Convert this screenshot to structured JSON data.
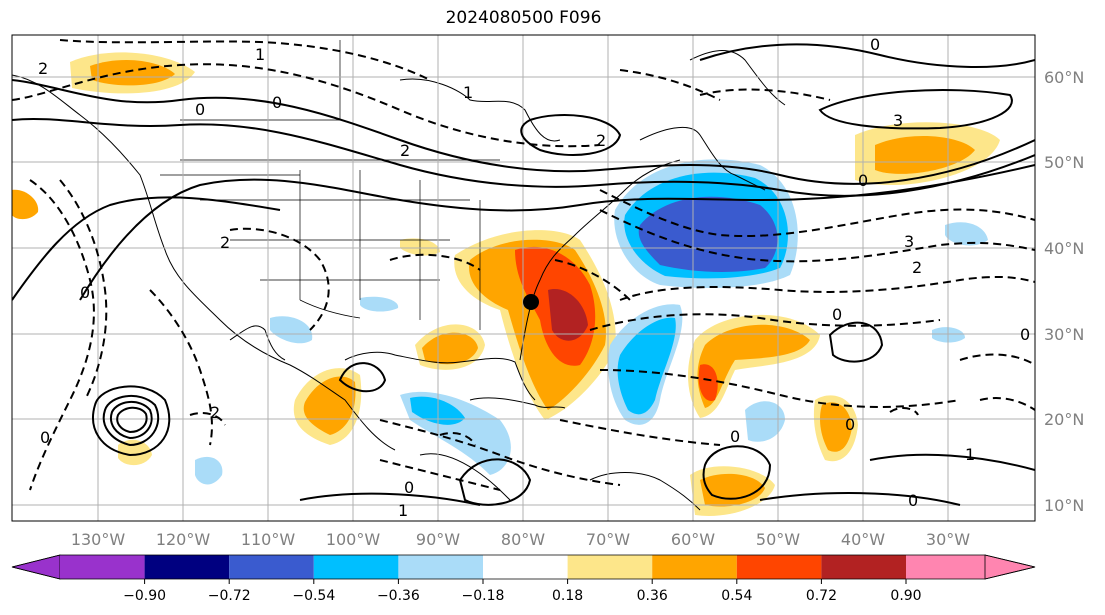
{
  "title": "2024080500 F096",
  "lat_labels": [
    "60°N",
    "50°N",
    "40°N",
    "30°N",
    "20°N",
    "10°N"
  ],
  "lon_labels": [
    "130°W",
    "120°W",
    "110°W",
    "100°W",
    "90°W",
    "80°W",
    "70°W",
    "60°W",
    "50°W",
    "40°W",
    "30°W"
  ],
  "colorbar": {
    "ticks": [
      "−0.90",
      "−0.72",
      "−0.54",
      "−0.36",
      "−0.18",
      "0.18",
      "0.36",
      "0.54",
      "0.72",
      "0.90"
    ],
    "colors": [
      "#9932cc",
      "#000080",
      "#3a5bcf",
      "#00bfff",
      "#aadcf8",
      "#ffffff",
      "#fde68a",
      "#ffa500",
      "#ff4500",
      "#b22222",
      "#ff85b0"
    ]
  },
  "contour_labels": [
    "2",
    "0",
    "1",
    "0",
    "2",
    "1",
    "3",
    "0",
    "2",
    "3",
    "2",
    "0",
    "0",
    "2",
    "0",
    "0",
    "1",
    "0",
    "0",
    "1",
    "2",
    "0",
    "0",
    "0"
  ]
}
